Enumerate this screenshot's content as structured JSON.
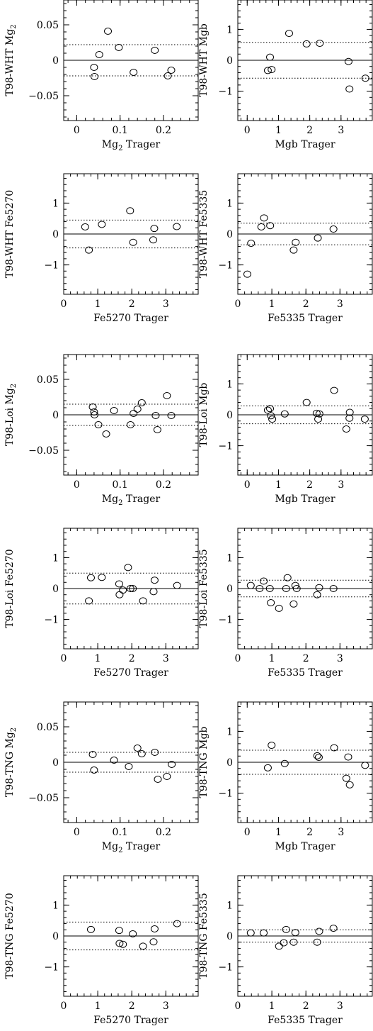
{
  "chart_data": [
    {
      "type": "scatter",
      "xlabel": "Mg2 Trager",
      "ylabel": "T98-WHT Mg2",
      "xlim": [
        -0.03,
        0.28
      ],
      "ylim": [
        -0.085,
        0.085
      ],
      "xticks": [
        0,
        0.1,
        0.2
      ],
      "xtick_labels": [
        "0",
        "0.1",
        "0.2"
      ],
      "yticks": [
        -0.05,
        0,
        0.05
      ],
      "ytick_labels": [
        "−0.05",
        "0",
        "0.05"
      ],
      "band": 0.022,
      "points": [
        {
          "x": 0.04,
          "y": -0.01
        },
        {
          "x": 0.041,
          "y": -0.023
        },
        {
          "x": 0.052,
          "y": 0.008
        },
        {
          "x": 0.072,
          "y": 0.041
        },
        {
          "x": 0.097,
          "y": 0.018
        },
        {
          "x": 0.131,
          "y": -0.017
        },
        {
          "x": 0.18,
          "y": 0.014
        },
        {
          "x": 0.21,
          "y": -0.022
        },
        {
          "x": 0.218,
          "y": -0.014
        }
      ]
    },
    {
      "type": "scatter",
      "xlabel": "Mgb Trager",
      "ylabel": "T98-WHT Mgb",
      "xlim": [
        -0.3,
        4.0
      ],
      "ylim": [
        -1.95,
        1.95
      ],
      "xticks": [
        0,
        1,
        2,
        3
      ],
      "xtick_labels": [
        "0",
        "1",
        "2",
        "3"
      ],
      "yticks": [
        -1,
        0,
        1
      ],
      "ytick_labels": [
        "−1",
        "0",
        "1"
      ],
      "band": 0.58,
      "points": [
        {
          "x": 0.66,
          "y": -0.33
        },
        {
          "x": 0.73,
          "y": 0.1
        },
        {
          "x": 0.78,
          "y": -0.3
        },
        {
          "x": 1.34,
          "y": 0.87
        },
        {
          "x": 1.9,
          "y": 0.53
        },
        {
          "x": 2.32,
          "y": 0.55
        },
        {
          "x": 3.24,
          "y": -0.04
        },
        {
          "x": 3.27,
          "y": -0.93
        },
        {
          "x": 3.78,
          "y": -0.58
        }
      ]
    },
    {
      "type": "scatter",
      "xlabel": "Fe5270 Trager",
      "ylabel": "T98-WHT Fe5270",
      "xlim": [
        0,
        3.95
      ],
      "ylim": [
        -1.95,
        1.95
      ],
      "xticks": [
        0,
        1,
        2,
        3
      ],
      "xtick_labels": [
        "0",
        "1",
        "2",
        "3"
      ],
      "yticks": [
        -1,
        0,
        1
      ],
      "ytick_labels": [
        "−1",
        "0",
        "1"
      ],
      "band": 0.45,
      "points": [
        {
          "x": 0.63,
          "y": 0.23
        },
        {
          "x": 0.74,
          "y": -0.52
        },
        {
          "x": 1.12,
          "y": 0.31
        },
        {
          "x": 1.95,
          "y": 0.75
        },
        {
          "x": 2.04,
          "y": -0.27
        },
        {
          "x": 2.63,
          "y": -0.19
        },
        {
          "x": 2.66,
          "y": 0.18
        },
        {
          "x": 3.32,
          "y": 0.24
        }
      ]
    },
    {
      "type": "scatter",
      "xlabel": "Fe5335 Trager",
      "ylabel": "T98-WHT Fe5335",
      "xlim": [
        0,
        3.95
      ],
      "ylim": [
        -1.95,
        1.95
      ],
      "xticks": [
        0,
        1,
        2,
        3
      ],
      "xtick_labels": [
        "0",
        "1",
        "2",
        "3"
      ],
      "yticks": [
        -1,
        0,
        1
      ],
      "ytick_labels": [
        "−1",
        "0",
        "1"
      ],
      "band": 0.35,
      "points": [
        {
          "x": 0.28,
          "y": -1.3
        },
        {
          "x": 0.39,
          "y": -0.3
        },
        {
          "x": 0.69,
          "y": 0.23
        },
        {
          "x": 0.77,
          "y": 0.52
        },
        {
          "x": 0.95,
          "y": 0.27
        },
        {
          "x": 1.64,
          "y": -0.52
        },
        {
          "x": 1.7,
          "y": -0.27
        },
        {
          "x": 2.35,
          "y": -0.13
        },
        {
          "x": 2.81,
          "y": 0.16
        }
      ]
    },
    {
      "type": "scatter",
      "xlabel": "Mg2 Trager",
      "ylabel": "T98-Loi Mg2",
      "xlim": [
        -0.03,
        0.28
      ],
      "ylim": [
        -0.085,
        0.085
      ],
      "xticks": [
        0,
        0.1,
        0.2
      ],
      "xtick_labels": [
        "0",
        "0.1",
        "0.2"
      ],
      "yticks": [
        -0.05,
        0,
        0.05
      ],
      "ytick_labels": [
        "−0.05",
        "0",
        "0.05"
      ],
      "band": 0.015,
      "points": [
        {
          "x": 0.037,
          "y": 0.011
        },
        {
          "x": 0.04,
          "y": 0.004
        },
        {
          "x": 0.041,
          "y": 0.0
        },
        {
          "x": 0.05,
          "y": -0.014
        },
        {
          "x": 0.068,
          "y": -0.027
        },
        {
          "x": 0.086,
          "y": 0.006
        },
        {
          "x": 0.124,
          "y": -0.014
        },
        {
          "x": 0.131,
          "y": 0.002
        },
        {
          "x": 0.14,
          "y": 0.008
        },
        {
          "x": 0.15,
          "y": 0.017
        },
        {
          "x": 0.182,
          "y": -0.001
        },
        {
          "x": 0.186,
          "y": -0.021
        },
        {
          "x": 0.208,
          "y": 0.027
        },
        {
          "x": 0.218,
          "y": -0.001
        }
      ]
    },
    {
      "type": "scatter",
      "xlabel": "Mgb Trager",
      "ylabel": "T98-Loi Mgb",
      "xlim": [
        -0.3,
        4.0
      ],
      "ylim": [
        -1.95,
        1.95
      ],
      "xticks": [
        0,
        1,
        2,
        3
      ],
      "xtick_labels": [
        "0",
        "1",
        "2",
        "3"
      ],
      "yticks": [
        -1,
        0,
        1
      ],
      "ytick_labels": [
        "−1",
        "0",
        "1"
      ],
      "band": 0.29,
      "points": [
        {
          "x": 0.66,
          "y": 0.15
        },
        {
          "x": 0.73,
          "y": 0.2
        },
        {
          "x": 0.76,
          "y": -0.03
        },
        {
          "x": 0.8,
          "y": -0.14
        },
        {
          "x": 1.2,
          "y": 0.03
        },
        {
          "x": 1.9,
          "y": 0.4
        },
        {
          "x": 2.22,
          "y": 0.05
        },
        {
          "x": 2.27,
          "y": -0.14
        },
        {
          "x": 2.31,
          "y": 0.03
        },
        {
          "x": 2.78,
          "y": 0.79
        },
        {
          "x": 3.17,
          "y": -0.46
        },
        {
          "x": 3.27,
          "y": -0.11
        },
        {
          "x": 3.28,
          "y": 0.08
        },
        {
          "x": 3.76,
          "y": -0.14
        }
      ]
    },
    {
      "type": "scatter",
      "xlabel": "Fe5270 Trager",
      "ylabel": "T98-Loi Fe5270",
      "xlim": [
        0,
        3.95
      ],
      "ylim": [
        -1.95,
        1.95
      ],
      "xticks": [
        0,
        1,
        2,
        3
      ],
      "xtick_labels": [
        "0",
        "1",
        "2",
        "3"
      ],
      "yticks": [
        -1,
        0,
        1
      ],
      "ytick_labels": [
        "−1",
        "0",
        "1"
      ],
      "band": 0.5,
      "points": [
        {
          "x": 0.74,
          "y": -0.4
        },
        {
          "x": 0.8,
          "y": 0.35
        },
        {
          "x": 1.12,
          "y": 0.36
        },
        {
          "x": 1.63,
          "y": 0.15
        },
        {
          "x": 1.64,
          "y": -0.2
        },
        {
          "x": 1.74,
          "y": -0.05
        },
        {
          "x": 1.89,
          "y": 0.68
        },
        {
          "x": 1.96,
          "y": 0.0
        },
        {
          "x": 2.03,
          "y": 0.0
        },
        {
          "x": 2.33,
          "y": -0.4
        },
        {
          "x": 2.64,
          "y": -0.1
        },
        {
          "x": 2.67,
          "y": 0.27
        },
        {
          "x": 3.33,
          "y": 0.1
        }
      ]
    },
    {
      "type": "scatter",
      "xlabel": "Fe5335 Trager",
      "ylabel": "T98-Loi Fe5335",
      "xlim": [
        0,
        3.95
      ],
      "ylim": [
        -1.95,
        1.95
      ],
      "xticks": [
        0,
        1,
        2,
        3
      ],
      "xtick_labels": [
        "0",
        "1",
        "2",
        "3"
      ],
      "yticks": [
        -1,
        0,
        1
      ],
      "ytick_labels": [
        "−1",
        "0",
        "1"
      ],
      "band": 0.27,
      "points": [
        {
          "x": 0.38,
          "y": 0.1
        },
        {
          "x": 0.64,
          "y": 0.0
        },
        {
          "x": 0.76,
          "y": 0.24
        },
        {
          "x": 0.94,
          "y": 0.0
        },
        {
          "x": 0.97,
          "y": -0.46
        },
        {
          "x": 1.21,
          "y": -0.64
        },
        {
          "x": 1.42,
          "y": 0.0
        },
        {
          "x": 1.46,
          "y": 0.35
        },
        {
          "x": 1.64,
          "y": -0.5
        },
        {
          "x": 1.69,
          "y": 0.1
        },
        {
          "x": 1.73,
          "y": 0.0
        },
        {
          "x": 2.33,
          "y": -0.2
        },
        {
          "x": 2.39,
          "y": 0.03
        },
        {
          "x": 2.81,
          "y": 0.0
        }
      ]
    },
    {
      "type": "scatter",
      "xlabel": "Mg2 Trager",
      "ylabel": "T98-TNG Mg2",
      "xlim": [
        -0.03,
        0.28
      ],
      "ylim": [
        -0.085,
        0.085
      ],
      "xticks": [
        0,
        0.1,
        0.2
      ],
      "xtick_labels": [
        "0",
        "0.1",
        "0.2"
      ],
      "yticks": [
        -0.05,
        0,
        0.05
      ],
      "ytick_labels": [
        "−0.05",
        "0",
        "0.05"
      ],
      "band": 0.014,
      "points": [
        {
          "x": 0.037,
          "y": 0.011
        },
        {
          "x": 0.04,
          "y": -0.011
        },
        {
          "x": 0.086,
          "y": 0.003
        },
        {
          "x": 0.12,
          "y": -0.006
        },
        {
          "x": 0.14,
          "y": 0.02
        },
        {
          "x": 0.15,
          "y": 0.012
        },
        {
          "x": 0.18,
          "y": 0.014
        },
        {
          "x": 0.187,
          "y": -0.024
        },
        {
          "x": 0.208,
          "y": -0.02
        },
        {
          "x": 0.219,
          "y": -0.003
        }
      ]
    },
    {
      "type": "scatter",
      "xlabel": "Mgb Trager",
      "ylabel": "T98-TNG Mgb",
      "xlim": [
        -0.3,
        4.0
      ],
      "ylim": [
        -1.95,
        1.95
      ],
      "xticks": [
        0,
        1,
        2,
        3
      ],
      "xtick_labels": [
        "0",
        "1",
        "2",
        "3"
      ],
      "yticks": [
        -1,
        0,
        1
      ],
      "ytick_labels": [
        "−1",
        "0",
        "1"
      ],
      "band": 0.39,
      "points": [
        {
          "x": 0.66,
          "y": -0.18
        },
        {
          "x": 0.78,
          "y": 0.55
        },
        {
          "x": 1.2,
          "y": -0.04
        },
        {
          "x": 2.24,
          "y": 0.21
        },
        {
          "x": 2.29,
          "y": 0.16
        },
        {
          "x": 2.78,
          "y": 0.47
        },
        {
          "x": 3.17,
          "y": -0.52
        },
        {
          "x": 3.23,
          "y": 0.17
        },
        {
          "x": 3.28,
          "y": -0.73
        },
        {
          "x": 3.77,
          "y": -0.1
        }
      ]
    },
    {
      "type": "scatter",
      "xlabel": "Fe5270 Trager",
      "ylabel": "T98-TNG Fe5270",
      "xlim": [
        0,
        3.95
      ],
      "ylim": [
        -1.95,
        1.95
      ],
      "xticks": [
        0,
        1,
        2,
        3
      ],
      "xtick_labels": [
        "0",
        "1",
        "2",
        "3"
      ],
      "yticks": [
        -1,
        0,
        1
      ],
      "ytick_labels": [
        "−1",
        "0",
        "1"
      ],
      "band": 0.45,
      "points": [
        {
          "x": 0.8,
          "y": 0.21
        },
        {
          "x": 1.63,
          "y": 0.18
        },
        {
          "x": 1.64,
          "y": -0.24
        },
        {
          "x": 1.74,
          "y": -0.27
        },
        {
          "x": 2.03,
          "y": 0.07
        },
        {
          "x": 2.33,
          "y": -0.33
        },
        {
          "x": 2.64,
          "y": -0.19
        },
        {
          "x": 2.67,
          "y": 0.23
        },
        {
          "x": 3.33,
          "y": 0.4
        }
      ]
    },
    {
      "type": "scatter",
      "xlabel": "Fe5335 Trager",
      "ylabel": "T98-TNG Fe5335",
      "xlim": [
        0,
        3.95
      ],
      "ylim": [
        -1.95,
        1.95
      ],
      "xticks": [
        0,
        1,
        2,
        3
      ],
      "xtick_labels": [
        "0",
        "1",
        "2",
        "3"
      ],
      "yticks": [
        -1,
        0,
        1
      ],
      "ytick_labels": [
        "−1",
        "0",
        "1"
      ],
      "band": 0.2,
      "points": [
        {
          "x": 0.38,
          "y": 0.1
        },
        {
          "x": 0.76,
          "y": 0.1
        },
        {
          "x": 1.21,
          "y": -0.33
        },
        {
          "x": 1.35,
          "y": -0.22
        },
        {
          "x": 1.42,
          "y": 0.21
        },
        {
          "x": 1.64,
          "y": -0.2
        },
        {
          "x": 1.69,
          "y": 0.11
        },
        {
          "x": 2.33,
          "y": -0.2
        },
        {
          "x": 2.39,
          "y": 0.15
        },
        {
          "x": 2.81,
          "y": 0.25
        }
      ]
    }
  ]
}
